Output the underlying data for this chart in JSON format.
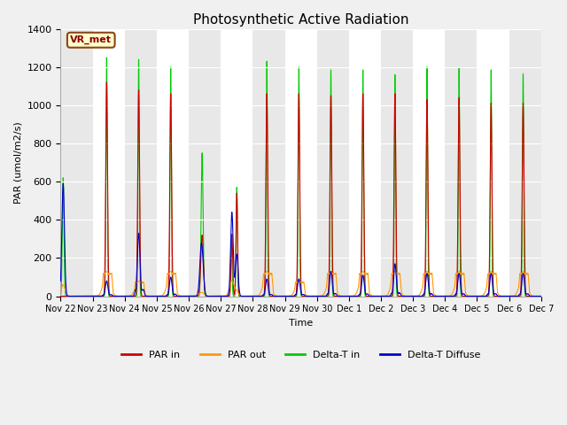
{
  "title": "Photosynthetic Active Radiation",
  "ylabel": "PAR (umol/m2/s)",
  "xlabel": "Time",
  "ylim": [
    0,
    1400
  ],
  "figsize": [
    6.4,
    4.8
  ],
  "dpi": 100,
  "bg_color": "#f0f0f0",
  "plot_bg_color": "#ffffff",
  "alt_band_color": "#e8e8e8",
  "legend_label": "VR_met",
  "colors": {
    "PAR in": "#cc0000",
    "PAR out": "#ff9900",
    "Delta-T in": "#00cc00",
    "Delta-T Diffuse": "#0000cc"
  },
  "series_labels": [
    "PAR in",
    "PAR out",
    "Delta-T in",
    "Delta-T Diffuse"
  ],
  "xtick_labels": [
    "Nov 22",
    "Nov 23",
    "Nov 24",
    "Nov 25",
    "Nov 26",
    "Nov 27",
    "Nov 28",
    "Nov 29",
    "Nov 30",
    "Dec 1",
    "Dec 2",
    "Dec 3",
    "Dec 4",
    "Dec 5",
    "Dec 6",
    "Dec 7"
  ],
  "ytick_values": [
    0,
    200,
    400,
    600,
    800,
    1000,
    1200,
    1400
  ],
  "day_configs": [
    {
      "PAR_in": 0,
      "PAR_out": 60,
      "DeltaT_in": 620,
      "DeltaT_diff": 590,
      "note": "Nov22"
    },
    {
      "PAR_in": 1120,
      "PAR_out": 130,
      "DeltaT_in": 1250,
      "DeltaT_diff": 80,
      "note": "Nov23"
    },
    {
      "PAR_in": 1080,
      "PAR_out": 80,
      "DeltaT_in": 1240,
      "DeltaT_diff": 330,
      "note": "Nov24"
    },
    {
      "PAR_in": 1060,
      "PAR_out": 130,
      "DeltaT_in": 1200,
      "DeltaT_diff": 100,
      "note": "Nov25"
    },
    {
      "PAR_in": 320,
      "PAR_out": 20,
      "DeltaT_in": 750,
      "DeltaT_diff": 280,
      "note": "Nov26"
    },
    {
      "PAR_in": 540,
      "PAR_out": 80,
      "DeltaT_in": 570,
      "DeltaT_diff": 440,
      "note": "Nov27"
    },
    {
      "PAR_in": 1060,
      "PAR_out": 130,
      "DeltaT_in": 1230,
      "DeltaT_diff": 90,
      "note": "Nov28"
    },
    {
      "PAR_in": 1060,
      "PAR_out": 80,
      "DeltaT_in": 1200,
      "DeltaT_diff": 90,
      "note": "Nov29"
    },
    {
      "PAR_in": 1050,
      "PAR_out": 130,
      "DeltaT_in": 1185,
      "DeltaT_diff": 130,
      "note": "Nov30"
    },
    {
      "PAR_in": 1060,
      "PAR_out": 130,
      "DeltaT_in": 1185,
      "DeltaT_diff": 110,
      "note": "Dec1"
    },
    {
      "PAR_in": 1060,
      "PAR_out": 130,
      "DeltaT_in": 1160,
      "DeltaT_diff": 170,
      "note": "Dec2"
    },
    {
      "PAR_in": 1030,
      "PAR_out": 130,
      "DeltaT_in": 1200,
      "DeltaT_diff": 120,
      "note": "Dec3"
    },
    {
      "PAR_in": 1040,
      "PAR_out": 130,
      "DeltaT_in": 1195,
      "DeltaT_diff": 120,
      "note": "Dec4"
    },
    {
      "PAR_in": 1010,
      "PAR_out": 130,
      "DeltaT_in": 1185,
      "DeltaT_diff": 120,
      "note": "Dec5"
    },
    {
      "PAR_in": 1010,
      "PAR_out": 130,
      "DeltaT_in": 1165,
      "DeltaT_diff": 120,
      "note": "Dec6"
    }
  ]
}
